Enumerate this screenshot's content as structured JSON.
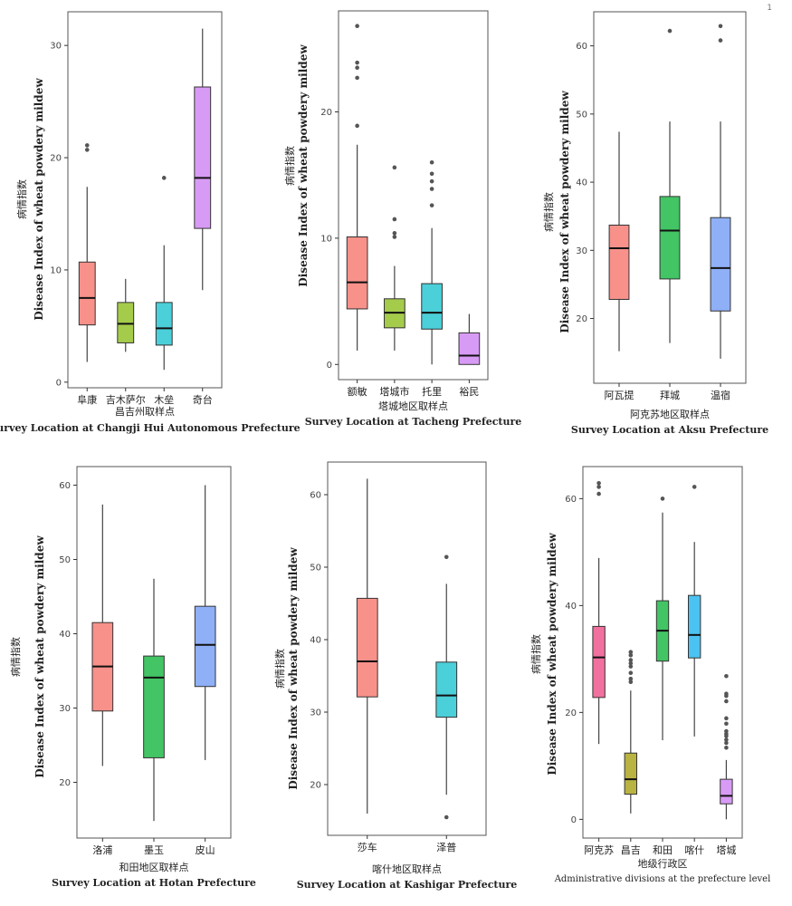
{
  "page_number": "1",
  "colors": {
    "red": "#F8918A",
    "green": "#43C465",
    "cyan": "#4BCFD9",
    "blue": "#8FB0F7",
    "purple": "#D89BF5",
    "lime": "#A5CB4B",
    "olive": "#B9B341",
    "skyblue": "#4BC3F2",
    "pink": "#F2709E"
  },
  "chart_data": [
    {
      "type": "box",
      "ylabel_cn": "病情指数",
      "ylabel_en": "Disease Index of wheat powdery mildew",
      "xlabel_cn": "昌吉州取样点",
      "xlabel_en": "Survey Location at Changji Hui Autonomous Prefecture",
      "ylim": [
        -0.5,
        33
      ],
      "yticks": [
        0,
        10,
        20,
        30
      ],
      "boxes": [
        {
          "label": "阜康",
          "min": 1.8,
          "q1": 5.1,
          "median": 7.5,
          "q3": 10.7,
          "max": 17.4,
          "outliers": [
            20.7,
            21.1
          ],
          "color": "#F8918A"
        },
        {
          "label": "吉木萨尔",
          "min": 2.7,
          "q1": 3.5,
          "median": 5.2,
          "q3": 7.1,
          "max": 9.2,
          "outliers": [],
          "color": "#A5CB4B"
        },
        {
          "label": "木垒",
          "min": 1.1,
          "q1": 3.3,
          "median": 4.8,
          "q3": 7.1,
          "max": 12.2,
          "outliers": [
            18.2
          ],
          "color": "#4BCFD9"
        },
        {
          "label": "奇台",
          "min": 8.2,
          "q1": 13.7,
          "median": 18.2,
          "q3": 26.3,
          "max": 31.5,
          "outliers": [],
          "color": "#D89BF5"
        }
      ]
    },
    {
      "type": "box",
      "ylabel_cn": "病情指数",
      "ylabel_en": "Disease Index of wheat powdery mildew",
      "xlabel_cn": "塔城地区取样点",
      "xlabel_en": "Survey Location at Tacheng Prefecture",
      "ylim": [
        -1.2,
        28
      ],
      "yticks": [
        0,
        10,
        20
      ],
      "boxes": [
        {
          "label": "额敏",
          "min": 1.1,
          "q1": 4.4,
          "median": 6.5,
          "q3": 10.1,
          "max": 17.4,
          "outliers": [
            18.9,
            22.7,
            23.5,
            23.9,
            26.8
          ],
          "color": "#F8918A"
        },
        {
          "label": "塔城市",
          "min": 1.1,
          "q1": 2.9,
          "median": 4.1,
          "q3": 5.2,
          "max": 7.8,
          "outliers": [
            10.1,
            10.4,
            11.5,
            15.6
          ],
          "color": "#A5CB4B"
        },
        {
          "label": "托里",
          "min": 0.0,
          "q1": 2.8,
          "median": 4.1,
          "q3": 6.4,
          "max": 10.8,
          "outliers": [
            12.6,
            13.9,
            14.5,
            15.1,
            16.0
          ],
          "color": "#4BCFD9"
        },
        {
          "label": "裕民",
          "min": 0.0,
          "q1": 0.0,
          "median": 0.7,
          "q3": 2.5,
          "max": 4.0,
          "outliers": [],
          "color": "#D89BF5"
        }
      ]
    },
    {
      "type": "box",
      "ylabel_cn": "病情指数",
      "ylabel_en": "Disease Index of wheat powdery mildew",
      "xlabel_cn": "阿克苏地区取样点",
      "xlabel_en": "Survey Location at Aksu Prefecture",
      "ylim": [
        10.5,
        65
      ],
      "yticks": [
        20,
        30,
        40,
        50,
        60
      ],
      "boxes": [
        {
          "label": "阿瓦提",
          "min": 15.2,
          "q1": 22.8,
          "median": 30.3,
          "q3": 33.7,
          "max": 47.4,
          "outliers": [],
          "color": "#F8918A"
        },
        {
          "label": "拜城",
          "min": 16.4,
          "q1": 25.8,
          "median": 32.9,
          "q3": 37.9,
          "max": 48.9,
          "outliers": [
            62.2
          ],
          "color": "#43C465"
        },
        {
          "label": "温宿",
          "min": 14.1,
          "q1": 21.1,
          "median": 27.4,
          "q3": 34.8,
          "max": 48.9,
          "outliers": [
            60.8,
            62.9
          ],
          "color": "#8FB0F7"
        }
      ]
    },
    {
      "type": "box",
      "ylabel_cn": "病情指数",
      "ylabel_en": "Disease Index of wheat powdery mildew",
      "xlabel_cn": "和田地区取样点",
      "xlabel_en": "Survey Location at Hotan Prefecture",
      "ylim": [
        12.5,
        62.5
      ],
      "yticks": [
        20,
        30,
        40,
        50,
        60
      ],
      "boxes": [
        {
          "label": "洛浦",
          "min": 22.2,
          "q1": 29.6,
          "median": 35.6,
          "q3": 41.5,
          "max": 57.4,
          "outliers": [],
          "color": "#F8918A"
        },
        {
          "label": "墨玉",
          "min": 14.8,
          "q1": 23.3,
          "median": 34.1,
          "q3": 37.0,
          "max": 47.4,
          "outliers": [],
          "color": "#43C465"
        },
        {
          "label": "皮山",
          "min": 23.0,
          "q1": 32.9,
          "median": 38.5,
          "q3": 43.7,
          "max": 60.0,
          "outliers": [],
          "color": "#8FB0F7"
        }
      ]
    },
    {
      "type": "box",
      "ylabel_cn": "病情指数",
      "ylabel_en": "Disease Index of wheat powdery mildew",
      "xlabel_cn": "喀什地区取样点",
      "xlabel_en": "Survey Location at Kashigar Prefecture",
      "ylim": [
        13,
        64.5
      ],
      "yticks": [
        20,
        30,
        40,
        50,
        60
      ],
      "boxes": [
        {
          "label": "莎车",
          "min": 16.0,
          "q1": 32.1,
          "median": 37.0,
          "q3": 45.7,
          "max": 62.2,
          "outliers": [],
          "color": "#F8918A"
        },
        {
          "label": "泽普",
          "min": 18.6,
          "q1": 29.3,
          "median": 32.3,
          "q3": 36.9,
          "max": 47.7,
          "outliers": [
            15.5,
            51.4
          ],
          "color": "#4BCFD9"
        }
      ]
    },
    {
      "type": "box",
      "ylabel_cn": "病情指数",
      "ylabel_en": "Disease Index of wheat powdery mildew",
      "xlabel_cn": "地级行政区",
      "xlabel_en": "Administrative divisions at the prefecture level",
      "ylim": [
        -3.5,
        66
      ],
      "yticks": [
        0,
        20,
        40,
        60
      ],
      "boxes": [
        {
          "label": "阿克苏",
          "min": 14.1,
          "q1": 22.8,
          "median": 30.3,
          "q3": 36.1,
          "max": 48.9,
          "outliers": [
            60.9,
            62.2,
            62.9
          ],
          "color": "#F2709E"
        },
        {
          "label": "昌吉",
          "min": 1.1,
          "q1": 4.7,
          "median": 7.5,
          "q3": 12.4,
          "max": 24.1,
          "outliers": [
            25.7,
            26.3,
            27.4,
            28.6,
            29.2,
            29.8,
            30.7,
            31.3
          ],
          "color": "#B9B341"
        },
        {
          "label": "和田",
          "min": 14.8,
          "q1": 29.6,
          "median": 35.3,
          "q3": 40.9,
          "max": 57.4,
          "outliers": [
            60.0
          ],
          "color": "#43C465"
        },
        {
          "label": "喀什",
          "min": 15.5,
          "q1": 30.2,
          "median": 34.5,
          "q3": 41.9,
          "max": 51.9,
          "outliers": [
            62.2
          ],
          "color": "#4BC3F2"
        },
        {
          "label": "塔城",
          "min": 0.0,
          "q1": 2.9,
          "median": 4.4,
          "q3": 7.5,
          "max": 11.1,
          "outliers": [
            13.4,
            14.3,
            14.9,
            15.6,
            16.0,
            16.5,
            17.9,
            18.9,
            22.1,
            23.1,
            23.5,
            26.8
          ],
          "color": "#D89BF5"
        }
      ]
    }
  ]
}
